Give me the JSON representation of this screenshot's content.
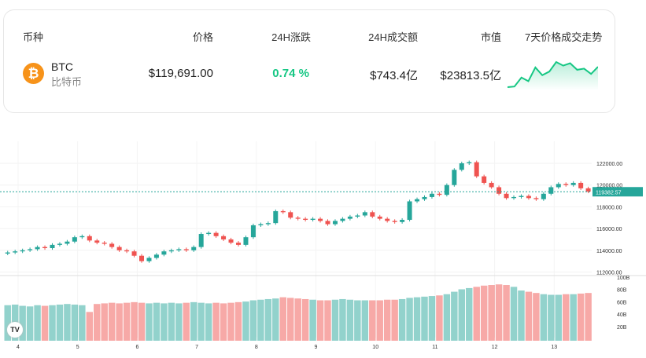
{
  "table": {
    "headers": [
      "币种",
      "价格",
      "24H涨跌",
      "24H成交额",
      "市值",
      "7天价格成交走势"
    ],
    "row": {
      "symbol": "BTC",
      "name": "比特币",
      "icon": "bitcoin-icon",
      "price": "$119,691.00",
      "change": "0.74 %",
      "volume": "$743.4亿",
      "market_cap": "$23813.5亿",
      "sparkline": [
        117.2,
        117.3,
        118.8,
        118.2,
        120.5,
        119.2,
        119.8,
        121.4,
        120.8,
        121.2,
        120.1,
        120.3,
        119.4,
        120.6
      ]
    }
  },
  "colors": {
    "up": "#26a69a",
    "down": "#ef5350",
    "change": "#16c784",
    "btc": "#f7931a"
  },
  "chart_data": {
    "type": "candlestick",
    "x_ticks": [
      "4",
      "5",
      "6",
      "7",
      "8",
      "9",
      "10",
      "11",
      "12",
      "13"
    ],
    "y_ticks": [
      "122000.00",
      "120000.00",
      "118000.00",
      "116000.00",
      "114000.00",
      "112000.00"
    ],
    "volume_ticks": [
      "100B",
      "80B",
      "60B",
      "40B",
      "20B"
    ],
    "ylim": [
      112000,
      122500
    ],
    "current_price": "119382.57",
    "closes": [
      113800,
      113900,
      114000,
      114100,
      114300,
      114200,
      114500,
      114600,
      114800,
      115200,
      115300,
      114900,
      114700,
      114600,
      114300,
      114000,
      113900,
      113500,
      113000,
      113300,
      113600,
      113900,
      114000,
      114100,
      114000,
      114300,
      115500,
      115600,
      115300,
      115000,
      114700,
      114500,
      115200,
      116300,
      116400,
      116500,
      117600,
      117500,
      117000,
      116900,
      116800,
      116900,
      116700,
      116400,
      116700,
      116900,
      117100,
      117200,
      117500,
      117100,
      116900,
      116700,
      116600,
      116800,
      118500,
      118700,
      118900,
      119200,
      119100,
      120000,
      121400,
      122000,
      122100,
      120800,
      120200,
      119800,
      119200,
      118800,
      118900,
      119000,
      118800,
      118700,
      119200,
      119800,
      120100,
      120000,
      120200,
      119700,
      119400
    ],
    "volumes_b": [
      58,
      59,
      57,
      56,
      58,
      57,
      58,
      59,
      60,
      59,
      58,
      47,
      60,
      61,
      62,
      61,
      62,
      63,
      62,
      61,
      62,
      61,
      62,
      61,
      62,
      63,
      62,
      61,
      62,
      61,
      62,
      63,
      64,
      66,
      67,
      68,
      69,
      71,
      70,
      69,
      68,
      67,
      66,
      66,
      67,
      68,
      67,
      66,
      66,
      66,
      66,
      67,
      67,
      68,
      70,
      71,
      72,
      73,
      74,
      76,
      80,
      84,
      86,
      88,
      90,
      91,
      92,
      91,
      88,
      82,
      80,
      78,
      76,
      75,
      75,
      76,
      76,
      77,
      78
    ]
  }
}
